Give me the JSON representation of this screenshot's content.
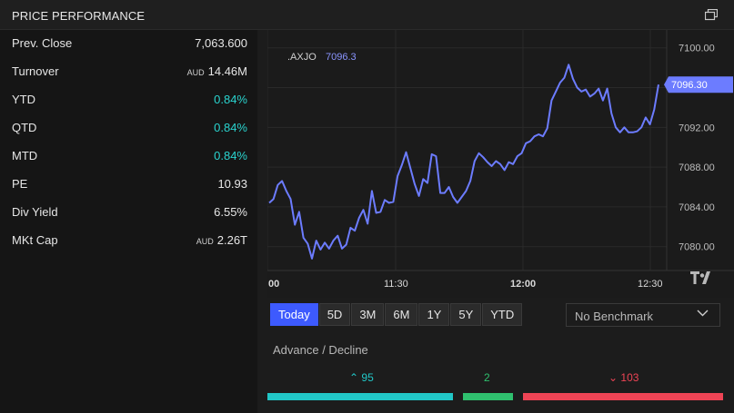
{
  "header": {
    "title": "PRICE PERFORMANCE"
  },
  "stats": [
    {
      "label": "Prev. Close",
      "currency": "",
      "value": "7,063.600",
      "positive": false
    },
    {
      "label": "Turnover",
      "currency": "AUD",
      "value": "14.46M",
      "positive": false
    },
    {
      "label": "YTD",
      "currency": "",
      "value": "0.84%",
      "positive": true
    },
    {
      "label": "QTD",
      "currency": "",
      "value": "0.84%",
      "positive": true
    },
    {
      "label": "MTD",
      "currency": "",
      "value": "0.84%",
      "positive": true
    },
    {
      "label": "PE",
      "currency": "",
      "value": "10.93",
      "positive": false
    },
    {
      "label": "Div Yield",
      "currency": "",
      "value": "6.55%",
      "positive": false
    },
    {
      "label": "MKt Cap",
      "currency": "AUD",
      "value": "2.26T",
      "positive": false
    }
  ],
  "chart_data": {
    "type": "line",
    "series_label": ".AXJO",
    "legend_value": "7096.3",
    "last_price_label": "7096.30",
    "y_ticks": [
      "7100.00",
      "7096.00",
      "7092.00",
      "7088.00",
      "7084.00",
      "7080.00"
    ],
    "x_ticks": [
      "00",
      "11:30",
      "12:00",
      "12:30"
    ],
    "ylim": [
      7077.6,
      7101.8
    ],
    "line_color": "#6c7cff",
    "y": [
      7084.4,
      7084.8,
      7086.2,
      7086.6,
      7085.6,
      7084.8,
      7082.2,
      7083.5,
      7080.9,
      7080.3,
      7078.8,
      7080.6,
      7079.7,
      7080.4,
      7079.8,
      7080.6,
      7081.1,
      7079.8,
      7080.2,
      7081.9,
      7081.6,
      7082.9,
      7083.7,
      7082.3,
      7085.6,
      7083.4,
      7083.5,
      7084.7,
      7084.4,
      7084.5,
      7087.1,
      7088.2,
      7089.5,
      7087.9,
      7086.3,
      7085.1,
      7086.8,
      7086.4,
      7089.3,
      7089.1,
      7085.4,
      7085.4,
      7086.0,
      7085.0,
      7084.4,
      7085.0,
      7085.6,
      7086.6,
      7088.6,
      7089.4,
      7089.0,
      7088.5,
      7088.1,
      7088.6,
      7088.3,
      7087.7,
      7088.5,
      7088.3,
      7089.1,
      7089.4,
      7090.4,
      7090.6,
      7091.1,
      7091.3,
      7091.1,
      7091.9,
      7094.7,
      7095.6,
      7096.5,
      7097.0,
      7098.3,
      7096.9,
      7096.0,
      7095.6,
      7095.8,
      7095.1,
      7095.4,
      7095.9,
      7094.7,
      7095.9,
      7093.4,
      7092.0,
      7091.5,
      7092.0,
      7091.5,
      7091.5,
      7091.6,
      7092.0,
      7093.0,
      7092.3,
      7093.8,
      7096.3
    ]
  },
  "ranges": [
    {
      "label": "Today",
      "active": true
    },
    {
      "label": "5D",
      "active": false
    },
    {
      "label": "3M",
      "active": false
    },
    {
      "label": "6M",
      "active": false
    },
    {
      "label": "1Y",
      "active": false
    },
    {
      "label": "5Y",
      "active": false
    },
    {
      "label": "YTD",
      "active": false
    }
  ],
  "benchmark": {
    "selected": "No Benchmark"
  },
  "advance_decline": {
    "title": "Advance / Decline",
    "advance": "95",
    "unchanged": "2",
    "decline": "103",
    "colors": {
      "advance": "#21c7c7",
      "unchanged": "#2fc06e",
      "decline": "#ee4455"
    }
  }
}
